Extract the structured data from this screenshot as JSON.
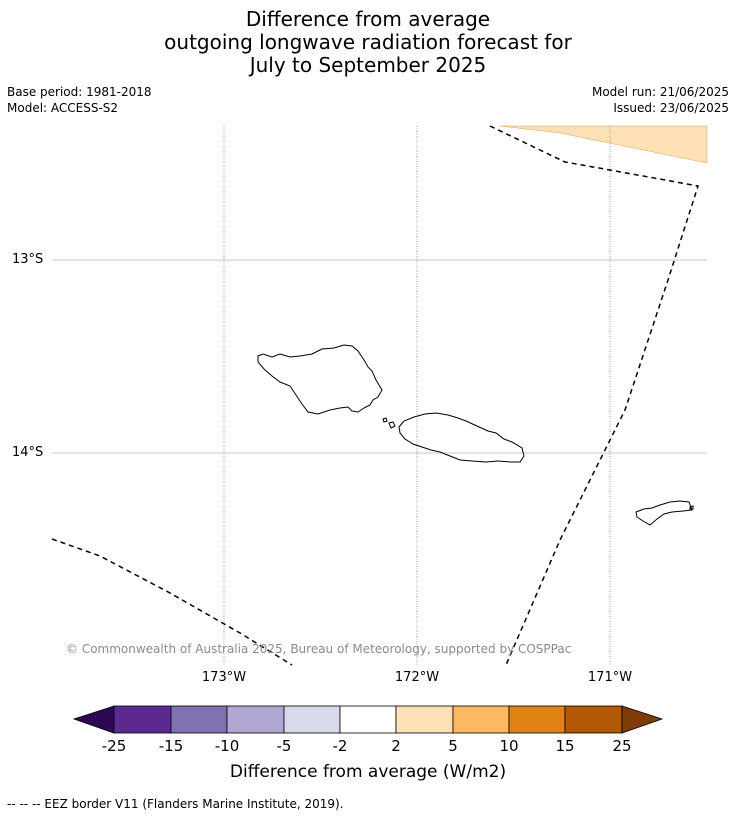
{
  "title": {
    "line1": "Difference from average",
    "line2": "outgoing longwave radiation forecast for",
    "line3": "July to September 2025"
  },
  "meta": {
    "base_period": "Base period: 1981-2018",
    "model": "Model: ACCESS-S2",
    "model_run": "Model run: 21/06/2025",
    "issued": "Issued: 23/06/2025"
  },
  "map": {
    "lat_labels": [
      "13°S",
      "14°S"
    ],
    "lon_labels": [
      "173°W",
      "172°W",
      "171°W"
    ],
    "copyright": "© Commonwealth of Australia 2025, Bureau of Meteorology, supported by COSPPac",
    "anomaly_fill_color": "#fde0b5",
    "coastline_color": "#000000",
    "eez_color": "#000000"
  },
  "colorbar": {
    "ticks": [
      "-25",
      "-15",
      "-10",
      "-5",
      "-2",
      "2",
      "5",
      "10",
      "15",
      "25"
    ],
    "colors": [
      "#2e0854",
      "#5c2a8e",
      "#8171b2",
      "#b0a8d3",
      "#d9d9ec",
      "#ffffff",
      "#fde0b5",
      "#fcb863",
      "#e08214",
      "#b35806",
      "#7f3b08"
    ],
    "label": "Difference from average (W/m2)"
  },
  "footnote": "--  --  -- EEZ border V11 (Flanders Marine Institute, 2019)."
}
